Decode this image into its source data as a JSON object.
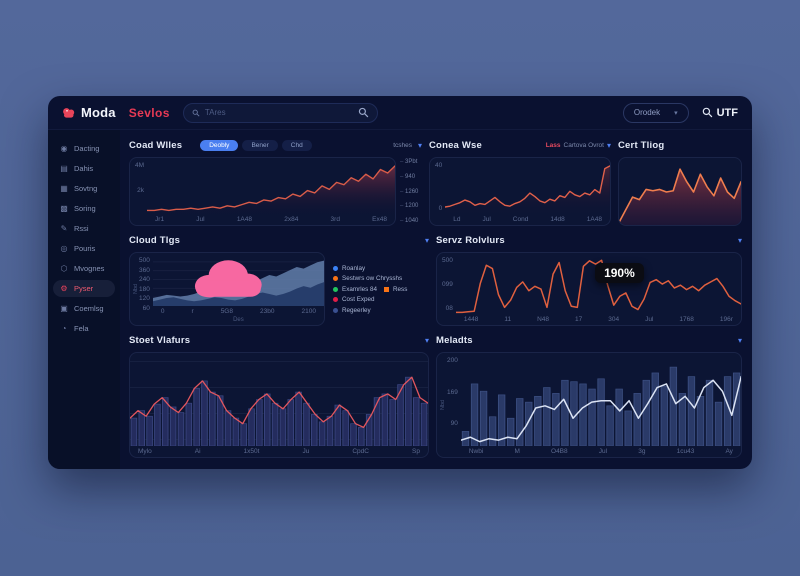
{
  "header": {
    "logo_text": "Moda",
    "nav_title": "Sevlos",
    "search_placeholder": "TAres",
    "language_selector": "Orodek",
    "utf_label": "UTF"
  },
  "sidebar": {
    "items": [
      {
        "label": "Dacting",
        "icon": "search",
        "active": false
      },
      {
        "label": "Dahis",
        "icon": "book",
        "active": false
      },
      {
        "label": "Sovtng",
        "icon": "chart",
        "active": false
      },
      {
        "label": "Soring",
        "icon": "layers",
        "active": false
      },
      {
        "label": "Rssi",
        "icon": "pen",
        "active": false
      },
      {
        "label": "Pouris",
        "icon": "target",
        "active": false
      },
      {
        "label": "Mvognes",
        "icon": "share",
        "active": false
      },
      {
        "label": "Pyser",
        "icon": "gear",
        "active": true
      },
      {
        "label": "Coemlsg",
        "icon": "calendar",
        "active": false
      },
      {
        "label": "Fela",
        "icon": "help",
        "active": false
      }
    ]
  },
  "panels": {
    "coad": {
      "title": "Coad Wlles",
      "tabs": [
        "Deobly",
        "Bener",
        "Chd"
      ],
      "active_tab": 0,
      "dropdown_label": "tcshes"
    },
    "conea": {
      "title": "Conea Wse",
      "filter_highlight": "Lass",
      "filter_label": "Cartova Ovrot"
    },
    "cert": {
      "title": "Cert Tliog"
    },
    "cloud": {
      "title": "Cloud Tlgs",
      "legend": [
        {
          "label": "Roanlay",
          "color": "#3b82f6"
        },
        {
          "label": "Sestwrs ow Chrysshs",
          "color": "#f97316"
        },
        {
          "label": "Examrles 84",
          "color": "#22c55e",
          "badge": "Ress",
          "badge_color": "#f97316"
        },
        {
          "label": "Cost Exped",
          "color": "#e11d48"
        },
        {
          "label": "Regeerley",
          "color": "#3a5090"
        }
      ]
    },
    "servz": {
      "title": "Servz Rolvlurs",
      "tooltip": "190%"
    },
    "stoet": {
      "title": "Stoet Vlafurs"
    },
    "meladts": {
      "title": "Meladts"
    }
  },
  "colors": {
    "accent_red": "#e83a55",
    "accent_blue": "#4a7ff0",
    "line_orange": "#e0603f",
    "line_pink_red": "#e2565e",
    "line_white": "#dbe3f4",
    "bar_blue": "#283868",
    "cloud_pink": "#f768a1",
    "window_bg": "#0a1130",
    "card_bg": "#0c1534",
    "page_bg": "#4e6496"
  },
  "chart_data": [
    {
      "name": "coad",
      "type": "area",
      "title": "Coad Wlles",
      "x_ticks": [
        "Jr1",
        "Jul",
        "1A48",
        "2x84",
        "3rd",
        "Ex48"
      ],
      "y_ticks_left": [
        "4M",
        "2k",
        ""
      ],
      "y_ticks_right": [
        "3Pbt",
        "940",
        "1260",
        "1200",
        "1040"
      ],
      "values": [
        3,
        3,
        4,
        3,
        4,
        4,
        5,
        4,
        5,
        6,
        5,
        7,
        6,
        8,
        10,
        9,
        12,
        11,
        14,
        13,
        17,
        15,
        20,
        18,
        24,
        21,
        27,
        25,
        31,
        28,
        34,
        30,
        38,
        35,
        41
      ]
    },
    {
      "name": "conea",
      "type": "area",
      "title": "Conea Wse",
      "x_ticks": [
        "Ld",
        "Jul",
        "Cond",
        "14d8",
        "1A48"
      ],
      "y_ticks": [
        "40",
        "0"
      ],
      "values": [
        8,
        9,
        11,
        13,
        16,
        14,
        10,
        12,
        11,
        15,
        19,
        14,
        10,
        9,
        12,
        14,
        18,
        24,
        20,
        15,
        13,
        17,
        15,
        21,
        19,
        26,
        22,
        20,
        24,
        22,
        28,
        24,
        52,
        55
      ]
    },
    {
      "name": "cert",
      "type": "area",
      "title": "Cert Tliog",
      "values": [
        2,
        12,
        22,
        20,
        28,
        27,
        28,
        26,
        27,
        44,
        34,
        26,
        40,
        30,
        23,
        37,
        26,
        21,
        34
      ]
    },
    {
      "name": "cloud",
      "type": "stacked-area",
      "title": "Cloud Tlgs",
      "x_ticks": [
        "0",
        "r",
        "5G8",
        "23b0",
        "2100"
      ],
      "y_ticks": [
        "500",
        "360",
        "240",
        "180",
        "120",
        "60"
      ],
      "xlabel": "Des",
      "ylabel": "Nbd",
      "series": [
        {
          "name": "back",
          "values": [
            20,
            24,
            28,
            26,
            24,
            26,
            30,
            36,
            42,
            40,
            38,
            44,
            52,
            58,
            56,
            62,
            70,
            78,
            74,
            82,
            90,
            98,
            94,
            102,
            110,
            114
          ]
        },
        {
          "name": "front",
          "values": [
            12,
            16,
            20,
            22,
            18,
            14,
            12,
            14,
            18,
            22,
            20,
            16,
            14,
            18,
            24,
            30,
            34,
            30,
            26,
            30,
            36,
            44,
            50,
            46,
            54,
            60
          ]
        }
      ]
    },
    {
      "name": "servz",
      "type": "line",
      "title": "Servz Rolvlurs",
      "x_ticks": [
        "1448",
        "11",
        "N48",
        "17",
        "304",
        "Jul",
        "1768",
        "196r"
      ],
      "y_ticks": [
        "500",
        "099",
        "08"
      ],
      "annotation": "190%",
      "values": [
        3,
        3,
        4,
        5,
        55,
        88,
        82,
        35,
        12,
        25,
        48,
        58,
        42,
        50,
        45,
        12,
        72,
        93,
        42,
        14,
        12,
        86,
        96,
        90,
        97,
        52,
        16,
        32,
        38,
        14,
        8,
        27,
        57,
        62,
        54,
        60,
        47,
        52,
        44,
        50,
        42,
        52,
        58,
        64,
        50,
        32,
        24,
        18
      ]
    },
    {
      "name": "stoet",
      "type": "bar-line",
      "title": "Stoet Vlafurs",
      "x_ticks": [
        "Mylo",
        "Ai",
        "1x50t",
        "Ju",
        "CpdC",
        "Sp"
      ],
      "values": [
        30,
        38,
        32,
        45,
        52,
        42,
        36,
        46,
        62,
        70,
        58,
        54,
        38,
        30,
        24,
        40,
        50,
        56,
        46,
        40,
        50,
        58,
        46,
        34,
        26,
        32,
        44,
        38,
        24,
        20,
        34,
        52,
        56,
        50,
        66,
        74,
        52,
        46
      ]
    },
    {
      "name": "meladts",
      "type": "bar-line",
      "title": "Meladts",
      "x_ticks": [
        "Nwbi",
        "M",
        "O4B8",
        "Jul",
        "3g",
        "1cu43",
        "Ay"
      ],
      "y_ticks": [
        "200",
        "169",
        "90"
      ],
      "ylabel": "Nbd",
      "bars": [
        20,
        85,
        75,
        40,
        70,
        38,
        65,
        60,
        68,
        80,
        72,
        90,
        88,
        85,
        78,
        92,
        55,
        78,
        48,
        72,
        90,
        100,
        82,
        108,
        72,
        95,
        68,
        90,
        60,
        95,
        100
      ],
      "line": [
        8,
        12,
        6,
        10,
        8,
        12,
        10,
        28,
        52,
        55,
        50,
        64,
        38,
        52,
        60,
        62,
        62,
        48,
        62,
        38,
        58,
        80,
        85,
        58,
        68,
        52,
        80,
        90,
        75,
        42,
        95
      ]
    }
  ]
}
